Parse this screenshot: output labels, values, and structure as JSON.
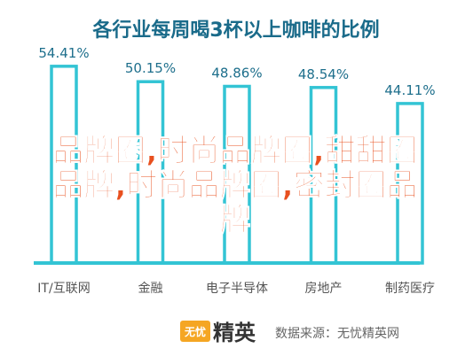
{
  "chart_data": {
    "type": "bar",
    "title": "各行业每周喝3杯以上咖啡的比例",
    "categories": [
      "IT/互联网",
      "金融",
      "电子半导体",
      "房地产",
      "制药医疗"
    ],
    "values": [
      54.41,
      50.15,
      48.86,
      48.54,
      44.11
    ],
    "value_labels": [
      "54.41%",
      "50.15%",
      "48.86%",
      "48.54%",
      "44.11%"
    ],
    "ylim": [
      0,
      60
    ],
    "grid": false,
    "legend": "none",
    "colors": {
      "bar_outline": "#33c4d4",
      "axis": "#33c4d4",
      "title": "#1a6b8a",
      "overlay": "#e8501f"
    }
  },
  "overlay_text": {
    "lines": [
      "品牌圈,时尚品牌圈,甜甜圈",
      "品牌,时尚品牌圈,密封圈品",
      "牌"
    ]
  },
  "footer": {
    "brand_badge": "无忧",
    "brand_name": "精英",
    "source": "数据来源：无忧精英网"
  }
}
